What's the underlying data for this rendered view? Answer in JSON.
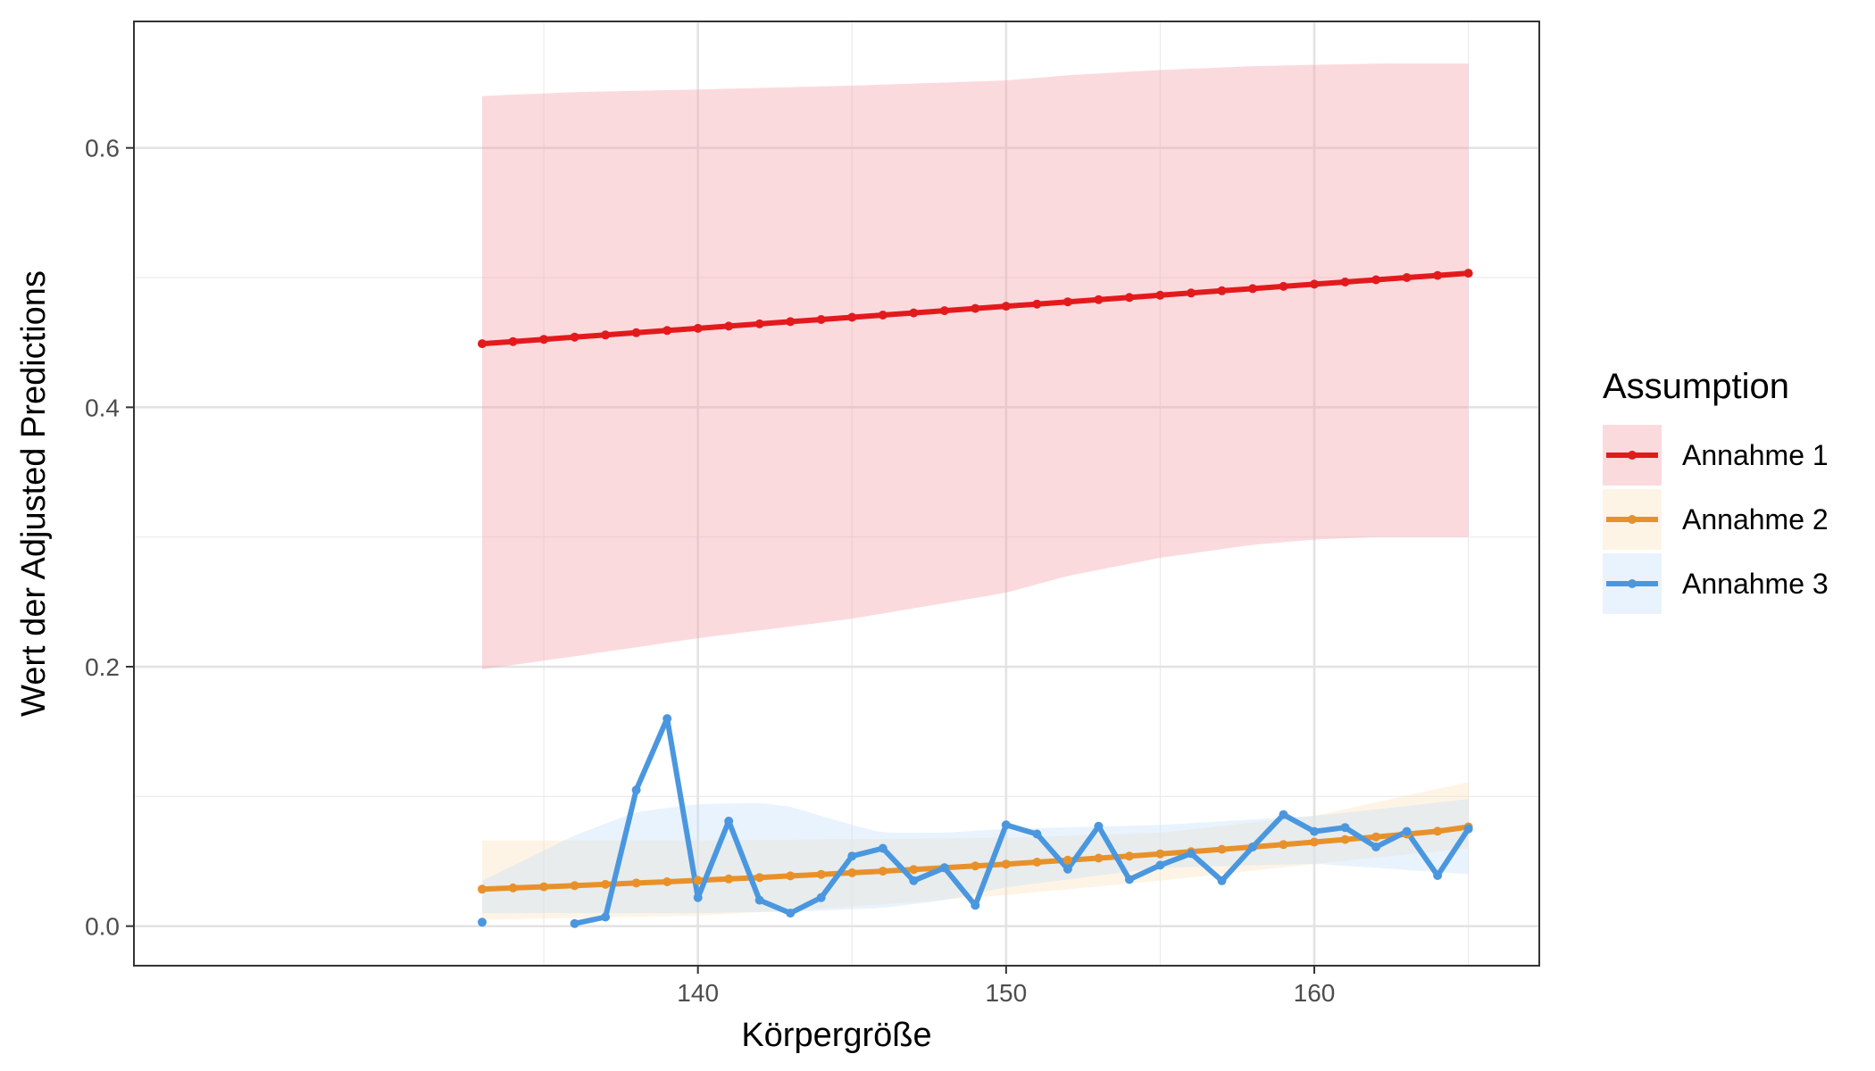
{
  "chart_data": {
    "type": "line",
    "title": "",
    "xlabel": "Körpergröße",
    "ylabel": "Wert der Adjusted Predictions",
    "xlim": [
      121.7,
      167.3
    ],
    "ylim": [
      -0.0305,
      0.6975
    ],
    "x_ticks": [
      140,
      150,
      160
    ],
    "x_tick_labels": [
      "140",
      "150",
      "160"
    ],
    "x_minor_ticks": [
      135,
      145,
      155,
      165
    ],
    "y_ticks": [
      0.0,
      0.2,
      0.4,
      0.6
    ],
    "y_tick_labels": [
      "0.0",
      "0.2",
      "0.4",
      "0.6"
    ],
    "y_minor_ticks": [
      0.1,
      0.3,
      0.5
    ],
    "grid": true,
    "legend": {
      "title": "Assumption",
      "position": "right",
      "entries": [
        "Annahme 1",
        "Annahme 2",
        "Annahme 3"
      ]
    },
    "series": [
      {
        "name": "Annahme 1",
        "color": "#e31a1c",
        "ribbon_color": "#f4a3ad",
        "x": [
          133,
          134,
          135,
          136,
          137,
          138,
          139,
          140,
          141,
          142,
          143,
          144,
          145,
          146,
          147,
          148,
          149,
          150,
          151,
          152,
          153,
          154,
          155,
          156,
          157,
          158,
          159,
          160,
          161,
          162,
          163,
          164,
          165
        ],
        "y": [
          0.449,
          0.4507,
          0.4524,
          0.4541,
          0.4558,
          0.4575,
          0.4592,
          0.4609,
          0.4626,
          0.4643,
          0.466,
          0.4677,
          0.4694,
          0.4711,
          0.4728,
          0.4745,
          0.4762,
          0.4779,
          0.4796,
          0.4813,
          0.483,
          0.4847,
          0.4864,
          0.4881,
          0.4898,
          0.4915,
          0.4932,
          0.4949,
          0.4966,
          0.4983,
          0.5,
          0.5017,
          0.5034
        ],
        "ribbon": {
          "x": [
            133,
            136,
            140,
            145,
            150,
            152,
            155,
            158,
            160,
            162,
            165
          ],
          "lower": [
            0.198,
            0.208,
            0.222,
            0.237,
            0.257,
            0.27,
            0.284,
            0.294,
            0.298,
            0.3,
            0.3
          ],
          "upper": [
            0.64,
            0.643,
            0.645,
            0.648,
            0.652,
            0.656,
            0.66,
            0.663,
            0.664,
            0.665,
            0.665
          ]
        }
      },
      {
        "name": "Annahme 2",
        "color": "#e8912a",
        "ribbon_color": "#fde3bf",
        "x": [
          133,
          134,
          135,
          136,
          137,
          138,
          139,
          140,
          141,
          142,
          143,
          144,
          145,
          146,
          147,
          148,
          149,
          150,
          151,
          152,
          153,
          154,
          155,
          156,
          157,
          158,
          159,
          160,
          161,
          162,
          163,
          164,
          165
        ],
        "y": [
          0.0285,
          0.0294,
          0.0303,
          0.0312,
          0.0322,
          0.0332,
          0.0342,
          0.0353,
          0.0364,
          0.0375,
          0.0387,
          0.0399,
          0.0411,
          0.0424,
          0.0437,
          0.045,
          0.0464,
          0.0478,
          0.0493,
          0.0508,
          0.0524,
          0.054,
          0.0557,
          0.0574,
          0.0592,
          0.061,
          0.0629,
          0.0648,
          0.0668,
          0.0688,
          0.0709,
          0.0731,
          0.0765
        ],
        "ribbon": {
          "x": [
            133,
            140,
            145,
            150,
            155,
            160,
            165
          ],
          "lower": [
            0.005,
            0.008,
            0.015,
            0.024,
            0.035,
            0.048,
            0.06
          ],
          "upper": [
            0.066,
            0.066,
            0.067,
            0.068,
            0.072,
            0.085,
            0.111
          ]
        }
      },
      {
        "name": "Annahme 3",
        "color": "#4a97df",
        "ribbon_color": "#c7e2f9",
        "x": [
          133,
          136,
          137,
          138,
          139,
          140,
          141,
          142,
          143,
          144,
          145,
          146,
          147,
          148,
          149,
          150,
          151,
          152,
          153,
          154,
          155,
          156,
          157,
          158,
          159,
          160,
          161,
          162,
          163,
          164,
          165
        ],
        "y": [
          0.003,
          0.002,
          0.007,
          0.105,
          0.16,
          0.022,
          0.081,
          0.02,
          0.01,
          0.022,
          0.054,
          0.06,
          0.035,
          0.045,
          0.016,
          0.078,
          0.071,
          0.044,
          0.077,
          0.036,
          0.047,
          0.056,
          0.035,
          0.061,
          0.086,
          0.073,
          0.076,
          0.061,
          0.073,
          0.039,
          0.075
        ],
        "ribbon": {
          "x": [
            133,
            136,
            138,
            140,
            142,
            143,
            145,
            146,
            148,
            150,
            155,
            160,
            162,
            165
          ],
          "lower": [
            0.01,
            0.01,
            0.01,
            0.01,
            0.011,
            0.011,
            0.013,
            0.014,
            0.02,
            0.03,
            0.045,
            0.048,
            0.045,
            0.04
          ],
          "upper": [
            0.035,
            0.07,
            0.088,
            0.094,
            0.095,
            0.092,
            0.078,
            0.072,
            0.072,
            0.075,
            0.078,
            0.085,
            0.09,
            0.098
          ]
        }
      }
    ]
  }
}
